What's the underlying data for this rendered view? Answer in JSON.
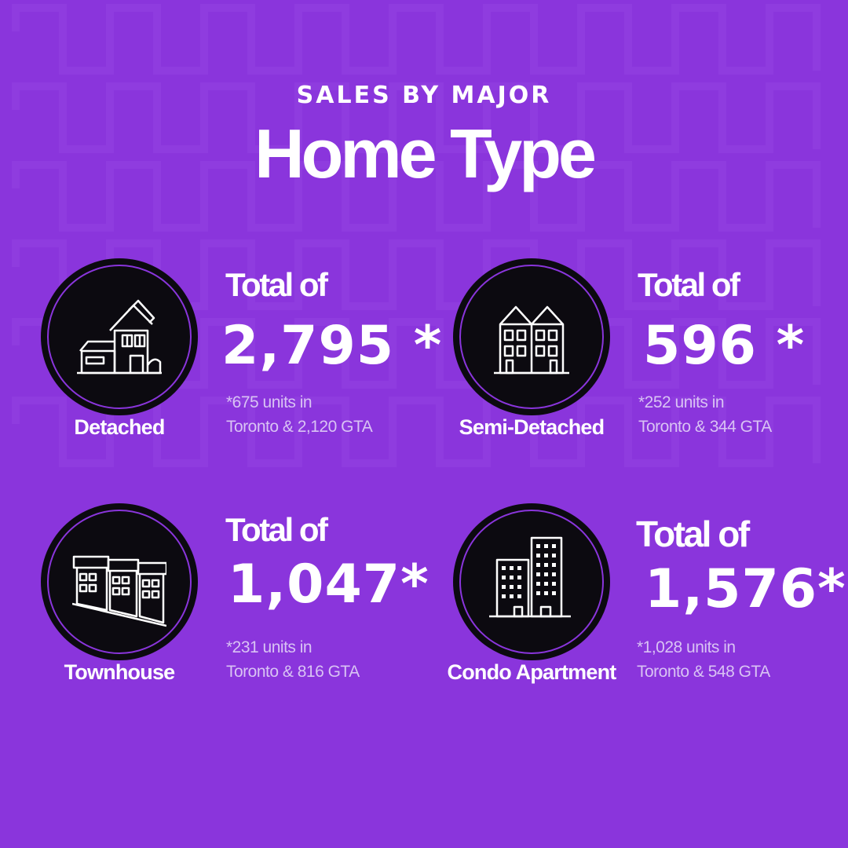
{
  "header": {
    "eyebrow": "SALES BY MAJOR",
    "title": "Home Type"
  },
  "colors": {
    "background": "#8a35dc",
    "circle": "#0c0a10",
    "ring": "#8a35dc",
    "note": "#d9c3f4"
  },
  "cards": [
    {
      "icon": "detached-house-icon",
      "type": "Detached",
      "total_label": "Total of",
      "total_value": "2,795 *",
      "note_line1": "*675 units in",
      "note_line2": "Toronto &  2,120 GTA"
    },
    {
      "icon": "semi-detached-house-icon",
      "type": "Semi-Detached",
      "total_label": "Total of",
      "total_value": "596 *",
      "note_line1": "*252 units in",
      "note_line2": "Toronto &  344 GTA"
    },
    {
      "icon": "townhouse-icon",
      "type": "Townhouse",
      "total_label": "Total of",
      "total_value": "1,047*",
      "note_line1": "*231 units in",
      "note_line2": "Toronto & 816 GTA"
    },
    {
      "icon": "condo-apartment-icon",
      "type": "Condo Apartment",
      "total_label": "Total of",
      "total_value": "1,576*",
      "note_line1": "*1,028  units in",
      "note_line2": "Toronto &  548 GTA"
    }
  ]
}
